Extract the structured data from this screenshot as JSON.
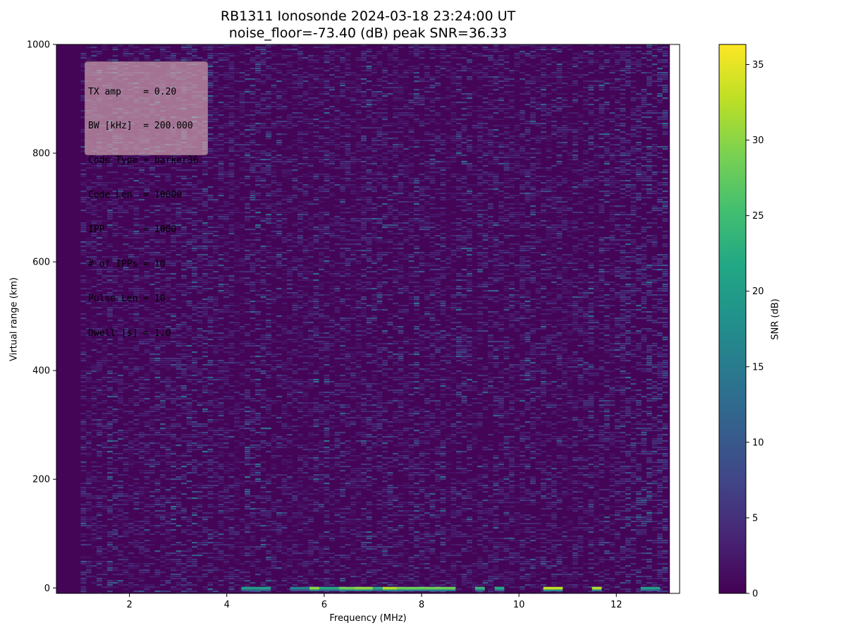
{
  "chart_data": {
    "type": "heatmap",
    "title": "RB1311 Ionosonde 2024-03-18 23:24:00  UT",
    "subtitle": "noise_floor=-73.40 (dB) peak SNR=36.33",
    "xlabel": "Frequency (MHz)",
    "ylabel": "Virtual range (km)",
    "colorbar_label": "SNR (dB)",
    "colormap": "viridis",
    "xlim": [
      0.5,
      13.3
    ],
    "ylim": [
      -10,
      1000
    ],
    "clim": [
      0,
      36.33
    ],
    "data_x_range": [
      0.5,
      13.1
    ],
    "x_ticks": [
      "2",
      "4",
      "6",
      "8",
      "10",
      "12"
    ],
    "y_ticks": [
      "0",
      "200",
      "400",
      "600",
      "800",
      "1000"
    ],
    "colorbar_ticks": [
      "0",
      "5",
      "10",
      "15",
      "20",
      "25",
      "30",
      "35"
    ],
    "noise_floor_db": -73.4,
    "peak_snr_db": 36.33,
    "annotation_lines": [
      "TX amp    = 0.20",
      "BW [kHz]  = 200.000",
      "Code Type = barker36",
      "Code Len  = 10000",
      "IPP       = 1000",
      "# of IPPs = 10",
      "Pulse Len = 10",
      "Dwell [s] = 1.0"
    ],
    "near_range_echo_bands": [
      {
        "x": [
          4.3,
          4.9
        ],
        "snr": 20
      },
      {
        "x": [
          5.3,
          5.7
        ],
        "snr": 16
      },
      {
        "x": [
          5.7,
          5.9
        ],
        "snr": 30
      },
      {
        "x": [
          5.9,
          6.3
        ],
        "snr": 22
      },
      {
        "x": [
          6.3,
          6.6
        ],
        "snr": 28
      },
      {
        "x": [
          6.6,
          7.0
        ],
        "snr": 30
      },
      {
        "x": [
          7.0,
          7.2
        ],
        "snr": 22
      },
      {
        "x": [
          7.2,
          7.5
        ],
        "snr": 32
      },
      {
        "x": [
          7.5,
          8.7
        ],
        "snr": 28
      },
      {
        "x": [
          9.1,
          9.3
        ],
        "snr": 24
      },
      {
        "x": [
          9.5,
          9.7
        ],
        "snr": 22
      },
      {
        "x": [
          10.5,
          10.9
        ],
        "snr": 33
      },
      {
        "x": [
          11.5,
          11.7
        ],
        "snr": 32
      },
      {
        "x": [
          12.5,
          12.9
        ],
        "snr": 20
      }
    ]
  }
}
